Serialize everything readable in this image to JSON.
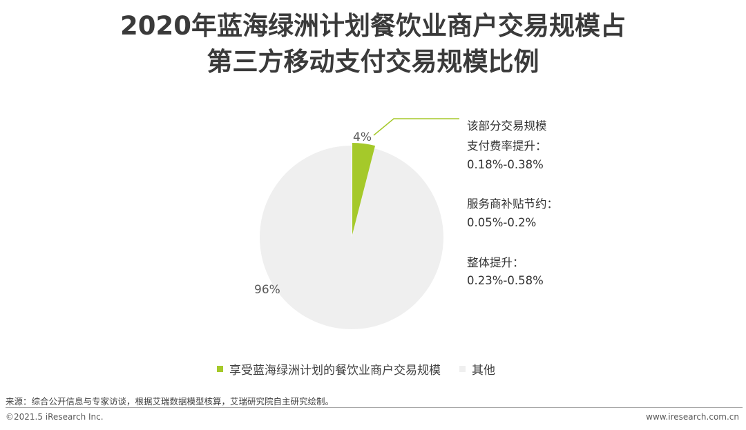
{
  "title": {
    "line1": "2020年蓝海绿洲计划餐饮业商户交易规模占",
    "line2": "第三方移动支付交易规模比例"
  },
  "chart_data": {
    "type": "pie",
    "slices": [
      {
        "name": "享受蓝海绿洲计划的餐饮业商户交易规模",
        "value": 4,
        "label": "4%",
        "color": "#a5c92a"
      },
      {
        "name": "其他",
        "value": 96,
        "label": "96%",
        "color": "#efefef"
      }
    ],
    "legend_position": "bottom"
  },
  "annotation": {
    "heading": "该部分交易规模",
    "items": [
      {
        "label": "支付费率提升：",
        "value": "0.18%-0.38%"
      },
      {
        "label": "服务商补贴节约：",
        "value": "0.05%-0.2%"
      },
      {
        "label": "整体提升：",
        "value": "0.23%-0.58%"
      }
    ]
  },
  "footer": {
    "source": "来源：综合公开信息与专家访谈，根据艾瑞数据模型核算，艾瑞研究院自主研究绘制。",
    "copyright": "©2021.5 iResearch Inc.",
    "website": "www.iresearch.com.cn"
  }
}
